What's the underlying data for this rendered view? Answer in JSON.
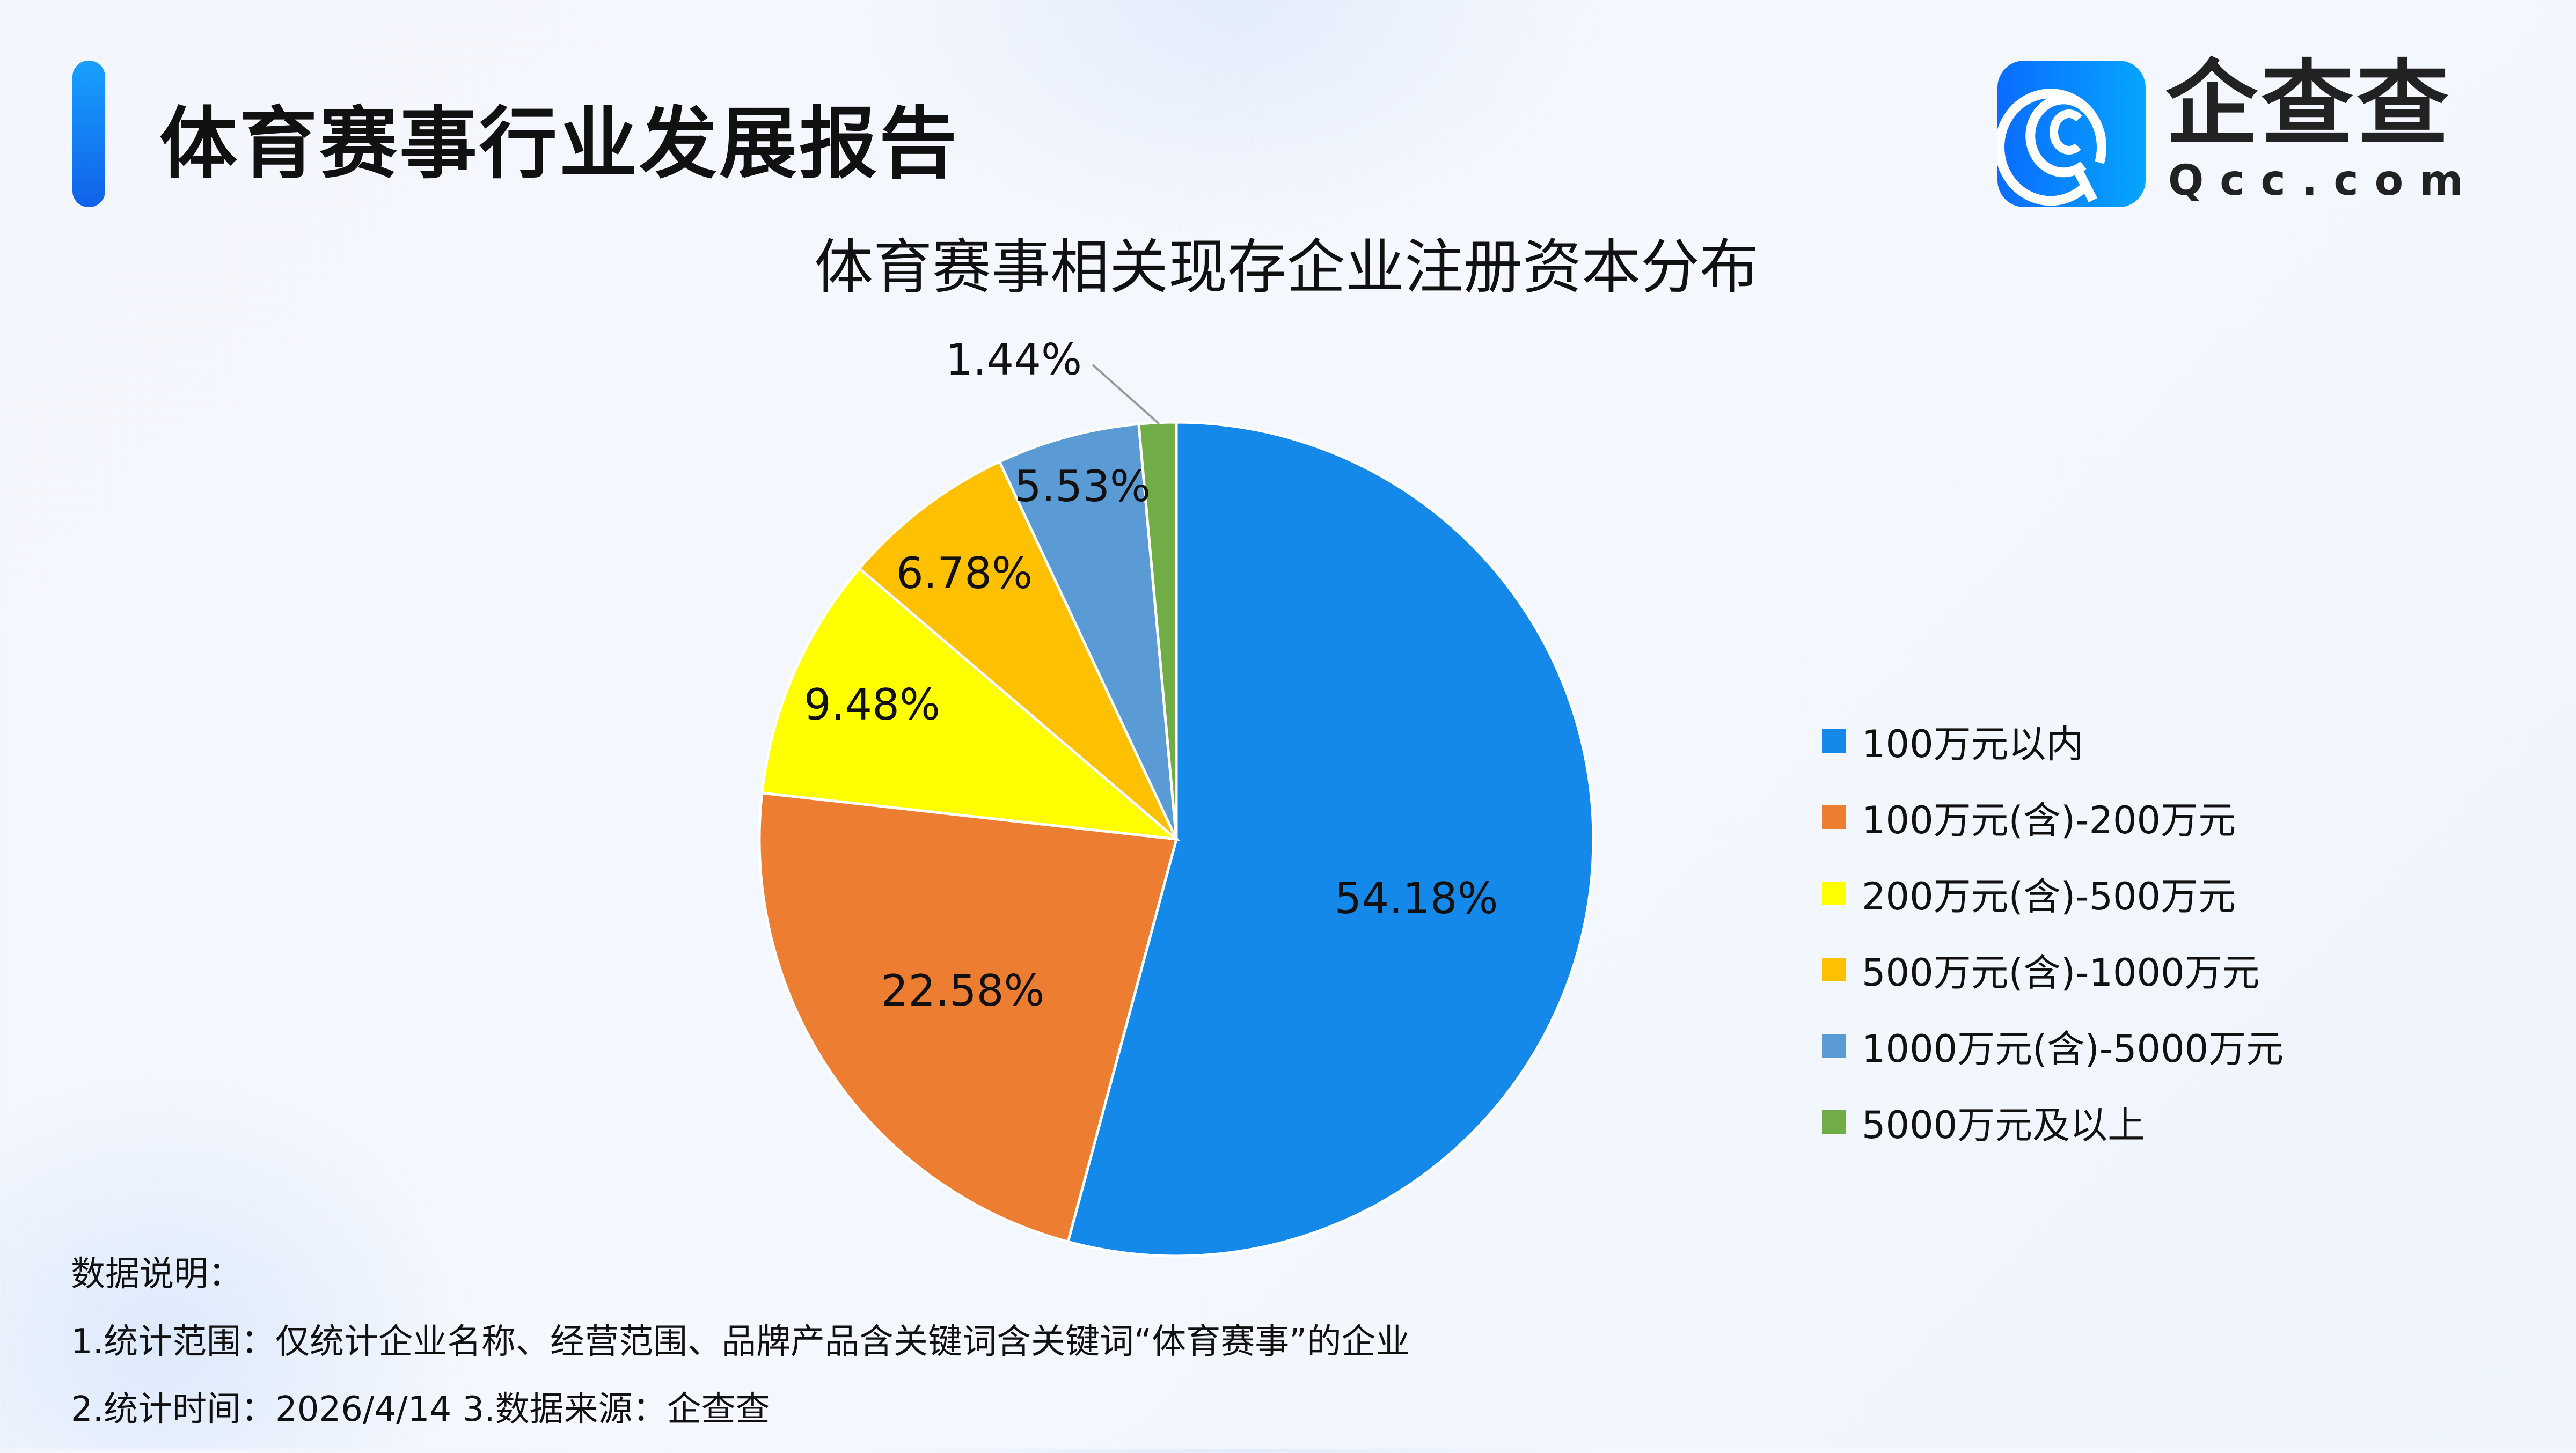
{
  "header": {
    "title": "体育赛事行业发展报告"
  },
  "logo": {
    "name": "企查查",
    "domain": "Qcc.com",
    "icon": "qcc-logo-icon"
  },
  "chart_data": {
    "type": "pie",
    "title": "体育赛事相关现存企业注册资本分布",
    "start_angle": "12 o'clock",
    "direction": "clockwise",
    "legend_position": "right",
    "categories": [
      "100万元以内",
      "100万元(含)-200万元",
      "200万元(含)-500万元",
      "500万元(含)-1000万元",
      "1000万元(含)-5000万元",
      "5000万元及以上"
    ],
    "values": [
      54.18,
      22.58,
      9.48,
      6.78,
      5.53,
      1.44
    ],
    "labels": [
      "54.18%",
      "22.58%",
      "9.48%",
      "6.78%",
      "5.53%",
      "1.44%"
    ],
    "colors": [
      "#1589EA",
      "#ED7D31",
      "#FFFF00",
      "#FFC000",
      "#5B9BD5",
      "#70AD47"
    ]
  },
  "footer": {
    "heading": "数据说明：",
    "line1": "1.统计范围：仅统计企业名称、经营范围、品牌产品含关键词含关键词“体育赛事”的企业",
    "line2": "2.统计时间：2026/4/14  3.数据来源：企查查"
  }
}
